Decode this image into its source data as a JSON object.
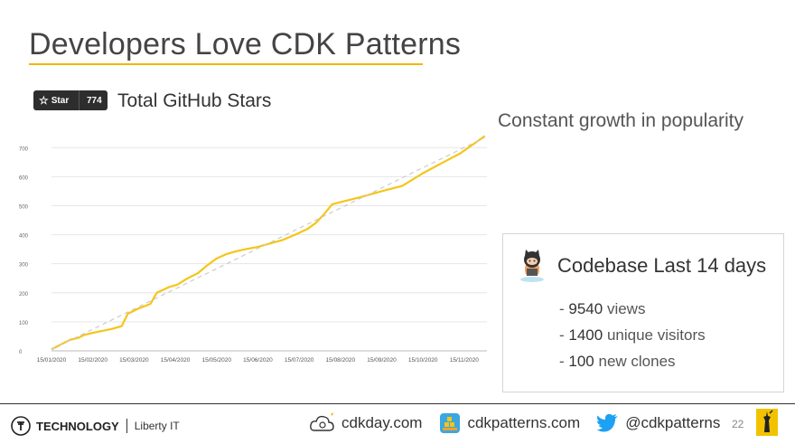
{
  "slide": {
    "title": "Developers Love CDK Patterns",
    "star_badge": {
      "label": "Star",
      "count": "774"
    },
    "chart_title": "Total GitHub Stars",
    "subtitle": "Constant growth in popularity",
    "accent_color": "#f2b705"
  },
  "codebase": {
    "title": "Codebase Last 14 days",
    "stats": [
      {
        "prefix": "- ",
        "number": "9540",
        "text": " views"
      },
      {
        "prefix": "- ",
        "number": "1400",
        "text": " unique visitors"
      },
      {
        "prefix": "- ",
        "number": "100",
        "text": " new clones"
      }
    ]
  },
  "footer": {
    "brand": "TECHNOLOGY",
    "sub_brand": "Liberty IT",
    "links": [
      {
        "icon": "cloud-icon",
        "text": "cdkday.com"
      },
      {
        "icon": "package-icon",
        "text": "cdkpatterns.com"
      },
      {
        "icon": "twitter-bird-icon",
        "text": "@cdkpatterns"
      }
    ],
    "page_number": "22"
  },
  "chart_data": {
    "type": "line",
    "ylim": [
      0,
      760
    ],
    "yticks": [
      0,
      100,
      200,
      300,
      400,
      500,
      600,
      700
    ],
    "xticks": [
      "15/01/2020",
      "15/02/2020",
      "15/03/2020",
      "15/04/2020",
      "15/05/2020",
      "15/06/2020",
      "15/07/2020",
      "15/08/2020",
      "15/09/2020",
      "15/10/2020",
      "15/11/2020"
    ],
    "xrange": [
      0,
      10.55
    ],
    "series": [
      {
        "color": "#f5c518",
        "x": [
          0,
          0.2,
          0.45,
          0.65,
          0.8,
          1.0,
          1.2,
          1.45,
          1.7,
          1.85,
          1.95,
          2.1,
          2.4,
          2.55,
          2.7,
          2.85,
          3.05,
          3.3,
          3.55,
          3.75,
          4.0,
          4.25,
          4.45,
          4.7,
          5.0,
          5.3,
          5.6,
          5.9,
          6.2,
          6.4,
          6.6,
          6.8,
          7.0,
          7.5,
          8.0,
          8.5,
          9.0,
          9.5,
          9.9,
          10.2,
          10.5
        ],
        "values": [
          5,
          20,
          38,
          45,
          55,
          62,
          68,
          75,
          85,
          128,
          135,
          145,
          162,
          200,
          210,
          220,
          228,
          250,
          268,
          292,
          318,
          334,
          342,
          350,
          358,
          370,
          382,
          400,
          420,
          440,
          470,
          505,
          512,
          530,
          550,
          568,
          612,
          650,
          680,
          710,
          740
        ]
      },
      {
        "dashed": true,
        "color": "#cccccc",
        "x": [
          0,
          10.5
        ],
        "values": [
          5,
          735
        ]
      }
    ]
  }
}
